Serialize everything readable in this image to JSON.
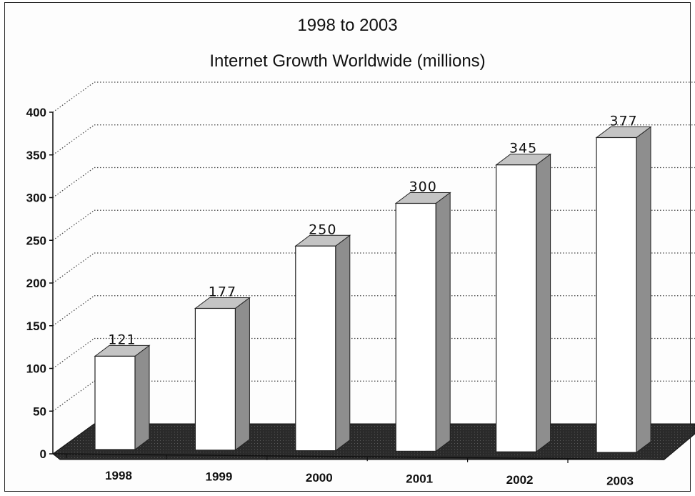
{
  "chart_data": {
    "type": "bar",
    "subtitle": "1998 to 2003",
    "title": "Internet Growth Worldwide (millions)",
    "categories": [
      "1998",
      "1999",
      "2000",
      "2001",
      "2002",
      "2003"
    ],
    "values": [
      121,
      177,
      250,
      300,
      345,
      377
    ],
    "data_labels": [
      "121",
      "177",
      "250",
      "300",
      "345",
      "377"
    ],
    "y_ticks": [
      "0",
      "50",
      "100",
      "150",
      "200",
      "250",
      "300",
      "350",
      "400"
    ],
    "ylim": [
      0,
      400
    ],
    "style": "3d-columns",
    "grid": true,
    "legend": "none"
  }
}
